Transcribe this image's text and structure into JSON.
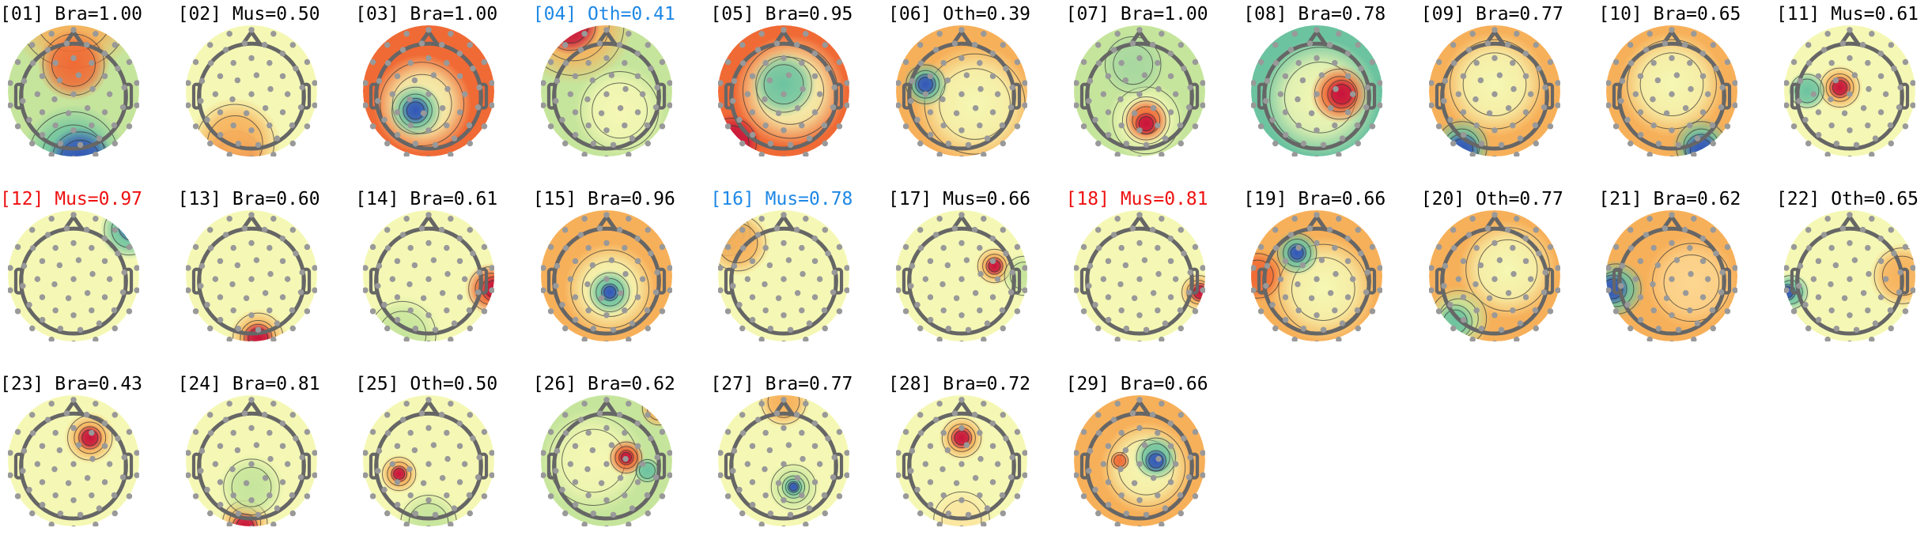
{
  "colors": {
    "default": "#000000",
    "blue": "#1e88e5",
    "red": "#ee1111"
  },
  "components": [
    {
      "label": "[01] Bra=1.00",
      "color": "default"
    },
    {
      "label": "[02] Mus=0.50",
      "color": "default"
    },
    {
      "label": "[03] Bra=1.00",
      "color": "default"
    },
    {
      "label": "[04] Oth=0.41",
      "color": "blue"
    },
    {
      "label": "[05] Bra=0.95",
      "color": "default"
    },
    {
      "label": "[06] Oth=0.39",
      "color": "default"
    },
    {
      "label": "[07] Bra=1.00",
      "color": "default"
    },
    {
      "label": "[08] Bra=0.78",
      "color": "default"
    },
    {
      "label": "[09] Bra=0.77",
      "color": "default"
    },
    {
      "label": "[10] Bra=0.65",
      "color": "default"
    },
    {
      "label": "[11] Mus=0.61",
      "color": "default"
    },
    {
      "label": "[12] Mus=0.97",
      "color": "red"
    },
    {
      "label": "[13] Bra=0.60",
      "color": "default"
    },
    {
      "label": "[14] Bra=0.61",
      "color": "default"
    },
    {
      "label": "[15] Bra=0.96",
      "color": "default"
    },
    {
      "label": "[16] Mus=0.78",
      "color": "blue"
    },
    {
      "label": "[17] Mus=0.66",
      "color": "default"
    },
    {
      "label": "[18] Mus=0.81",
      "color": "red"
    },
    {
      "label": "[19] Bra=0.66",
      "color": "default"
    },
    {
      "label": "[20] Oth=0.77",
      "color": "default"
    },
    {
      "label": "[21] Bra=0.62",
      "color": "default"
    },
    {
      "label": "[22] Oth=0.65",
      "color": "default"
    },
    {
      "label": "[23] Bra=0.43",
      "color": "default"
    },
    {
      "label": "[24] Bra=0.81",
      "color": "default"
    },
    {
      "label": "[25] Oth=0.50",
      "color": "default"
    },
    {
      "label": "[26] Bra=0.62",
      "color": "default"
    },
    {
      "label": "[27] Bra=0.77",
      "color": "default"
    },
    {
      "label": "[28] Bra=0.72",
      "color": "default"
    },
    {
      "label": "[29] Bra=0.66",
      "color": "default"
    }
  ]
}
